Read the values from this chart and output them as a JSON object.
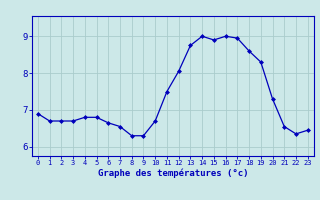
{
  "hours": [
    0,
    1,
    2,
    3,
    4,
    5,
    6,
    7,
    8,
    9,
    10,
    11,
    12,
    13,
    14,
    15,
    16,
    17,
    18,
    19,
    20,
    21,
    22,
    23
  ],
  "temps": [
    6.9,
    6.7,
    6.7,
    6.7,
    6.8,
    6.8,
    6.65,
    6.55,
    6.3,
    6.3,
    6.7,
    7.5,
    8.05,
    8.75,
    9.0,
    8.9,
    9.0,
    8.95,
    8.6,
    8.3,
    7.3,
    6.55,
    6.35,
    6.45
  ],
  "xlabel": "Graphe des températures (°c)",
  "line_color": "#0000bb",
  "marker": "D",
  "marker_size": 2.0,
  "bg_color": "#cce8e8",
  "grid_color": "#aacccc",
  "axis_color": "#0000bb",
  "tick_color": "#0000bb",
  "ylim_min": 5.75,
  "ylim_max": 9.55,
  "ytick_vals": [
    6,
    7,
    8,
    9
  ],
  "ytick_labels": [
    "6",
    "7",
    "8",
    "9"
  ],
  "figsize": [
    3.2,
    2.0
  ],
  "dpi": 100
}
